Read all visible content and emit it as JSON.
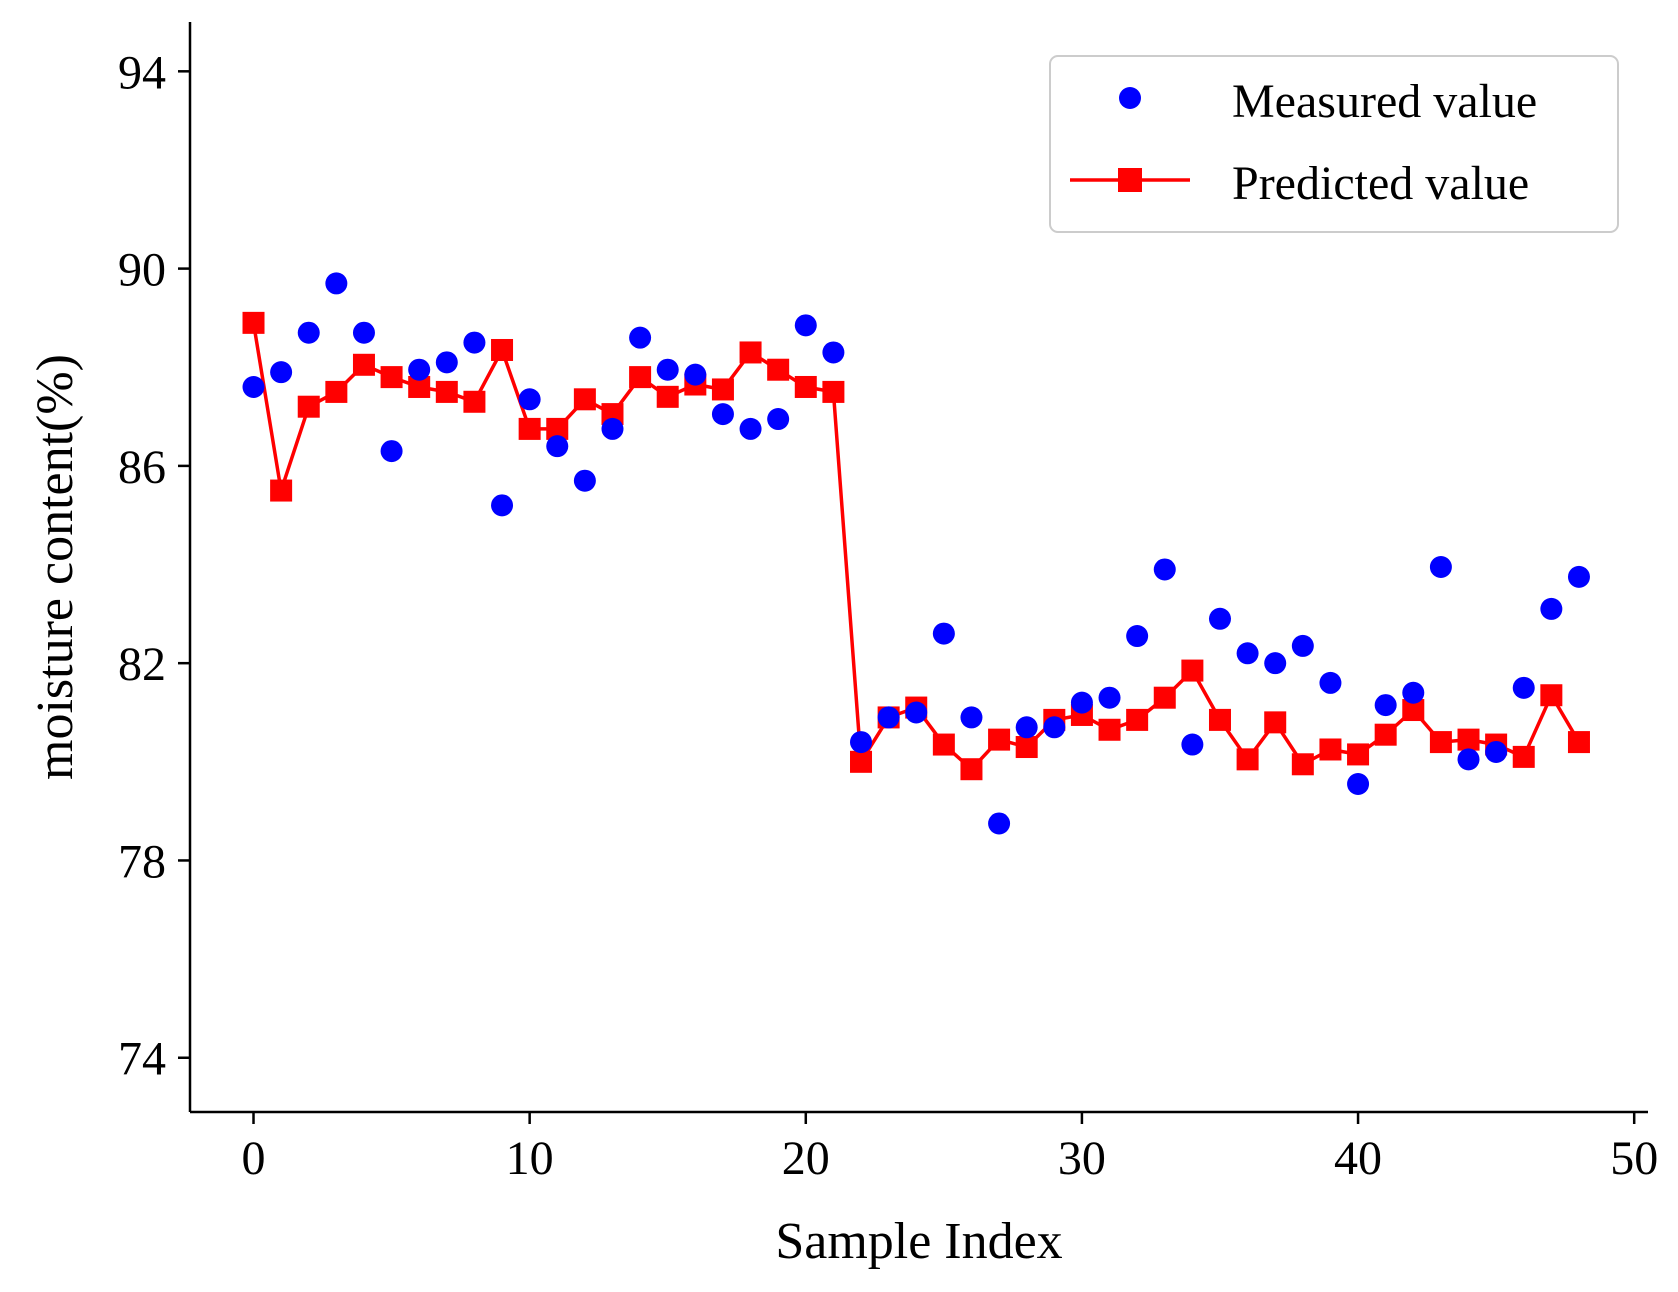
{
  "chart_data": {
    "type": "line",
    "xlabel": "Sample Index",
    "ylabel": "moisture content(%)",
    "xlim": [
      -2.3,
      50.5
    ],
    "ylim": [
      72.9,
      95.0
    ],
    "xticks": [
      0,
      10,
      20,
      30,
      40,
      50
    ],
    "yticks": [
      74,
      78,
      82,
      86,
      90,
      94
    ],
    "grid": false,
    "legend_position": "top-right",
    "colors": {
      "measured": "#0000ff",
      "predicted": "#ff0000"
    },
    "x": [
      0,
      1,
      2,
      3,
      4,
      5,
      6,
      7,
      8,
      9,
      10,
      11,
      12,
      13,
      14,
      15,
      16,
      17,
      18,
      19,
      20,
      21,
      22,
      23,
      24,
      25,
      26,
      27,
      28,
      29,
      30,
      31,
      32,
      33,
      34,
      35,
      36,
      37,
      38,
      39,
      40,
      41,
      42,
      43,
      44,
      45,
      46,
      47,
      48
    ],
    "series": [
      {
        "name": "Measured value",
        "style": "markers",
        "marker": "circle",
        "values": [
          87.6,
          87.9,
          88.7,
          89.7,
          88.7,
          86.3,
          87.95,
          88.1,
          88.5,
          85.2,
          87.35,
          86.4,
          85.7,
          86.75,
          88.6,
          87.95,
          87.85,
          87.05,
          86.75,
          86.95,
          88.85,
          88.3,
          80.4,
          80.9,
          81.0,
          82.6,
          80.9,
          78.75,
          80.7,
          80.7,
          81.2,
          81.3,
          82.55,
          83.9,
          80.35,
          82.9,
          82.2,
          82.0,
          82.35,
          81.6,
          79.55,
          81.15,
          81.4,
          83.95,
          80.05,
          80.2,
          81.5,
          83.1,
          83.75
        ]
      },
      {
        "name": "Predicted value",
        "style": "line-markers",
        "marker": "square",
        "values": [
          88.9,
          85.5,
          87.2,
          87.5,
          88.05,
          87.8,
          87.6,
          87.5,
          87.3,
          88.35,
          86.75,
          86.75,
          87.35,
          87.05,
          87.8,
          87.4,
          87.65,
          87.55,
          88.3,
          87.95,
          87.6,
          87.5,
          80.0,
          80.9,
          81.1,
          80.35,
          79.85,
          80.45,
          80.3,
          80.85,
          80.95,
          80.65,
          80.85,
          81.3,
          81.85,
          80.85,
          80.05,
          80.8,
          79.95,
          80.25,
          80.15,
          80.55,
          81.05,
          80.4,
          80.45,
          80.35,
          80.1,
          81.35,
          80.4
        ]
      }
    ]
  }
}
